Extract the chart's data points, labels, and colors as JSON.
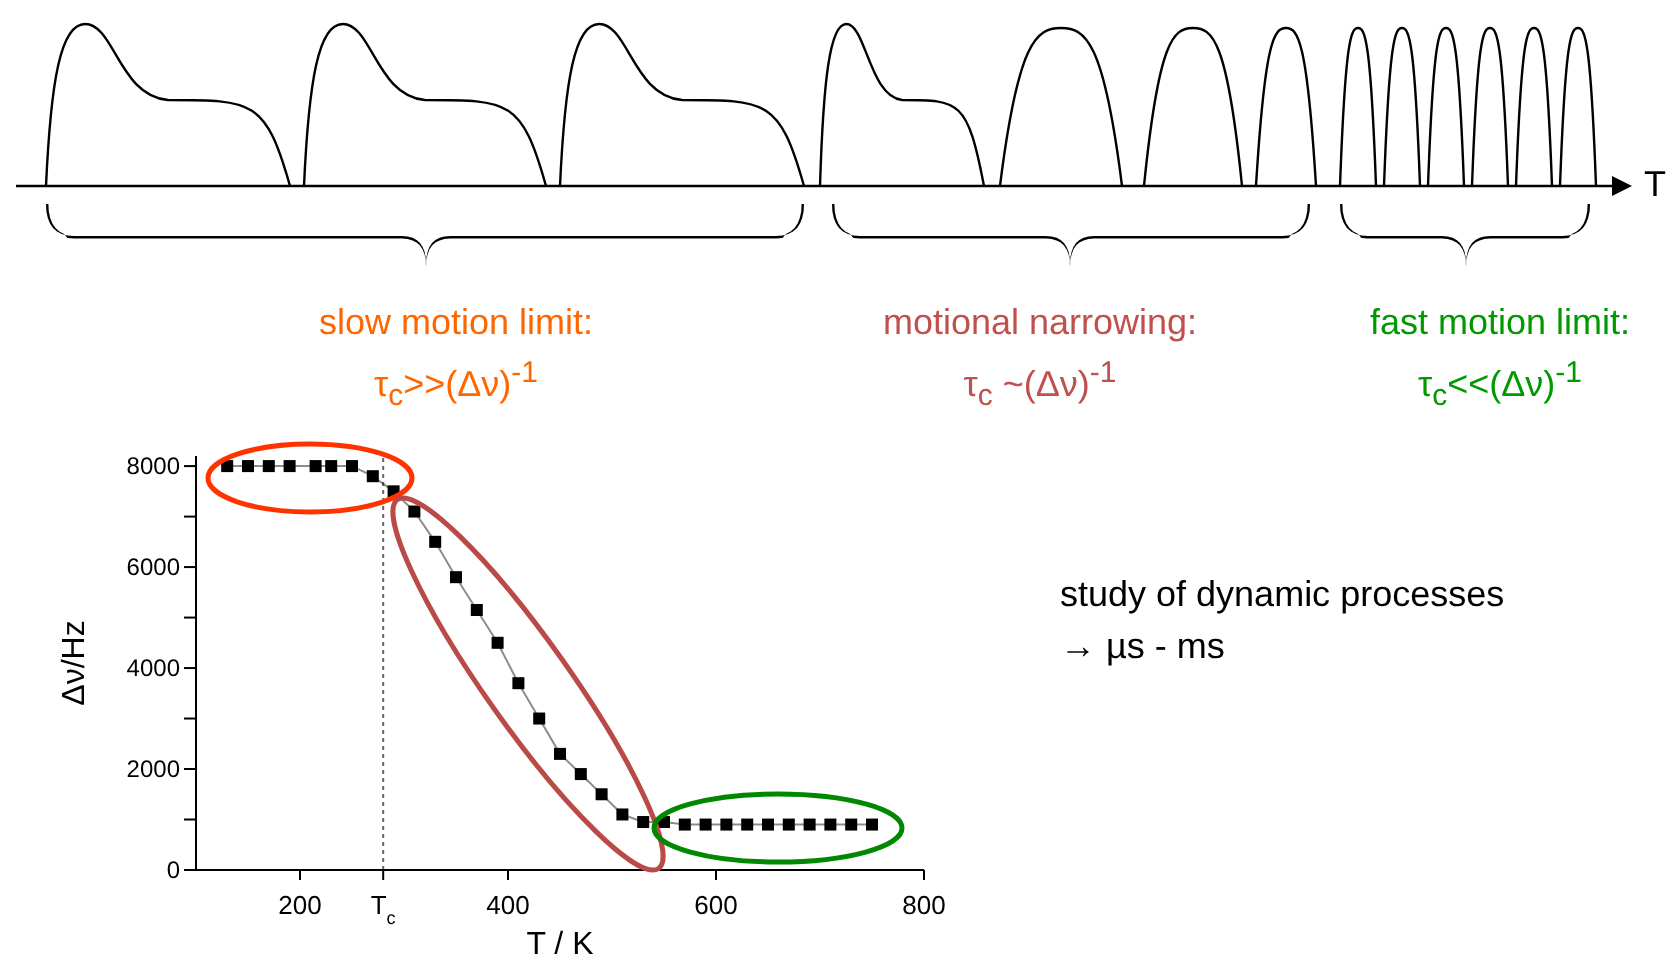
{
  "chart_data": {
    "type": "line",
    "xlabel": "T / K",
    "ylabel": "Δν/Hz",
    "x": [
      130,
      150,
      170,
      190,
      215,
      230,
      250,
      270,
      290,
      310,
      330,
      350,
      370,
      390,
      410,
      430,
      450,
      470,
      490,
      510,
      530,
      550,
      570,
      590,
      610,
      630,
      650,
      670,
      690,
      710,
      730,
      750
    ],
    "series": [
      {
        "color": "#000000",
        "values": [
          8000,
          8000,
          8000,
          8000,
          8000,
          8000,
          8000,
          7800,
          7500,
          7100,
          6500,
          5800,
          5150,
          4500,
          3700,
          3000,
          2300,
          1900,
          1500,
          1100,
          950,
          950,
          900,
          900,
          900,
          900,
          900,
          900,
          900,
          900,
          900,
          900
        ]
      }
    ],
    "xlim": [
      100,
      800
    ],
    "xticks": [
      200,
      {
        "value": 280,
        "label": "T$_{c}$"
      },
      400,
      600,
      800
    ],
    "ylim": [
      0,
      8200
    ],
    "yticks": [
      0,
      {
        "value": 1000,
        "label": null
      },
      2000,
      {
        "value": 3000,
        "label": null
      },
      4000,
      {
        "value": 5000,
        "label": null
      },
      6000,
      {
        "value": 7000,
        "label": null
      },
      8000
    ],
    "ref_lines": [
      {
        "axis": "x",
        "value": 280,
        "line_style": "dotted"
      }
    ],
    "marker": "square",
    "line_style": "solid",
    "grid": false,
    "legend": false,
    "annotations": [
      "T",
      "slow motion limit:",
      "τ$_{c}$>>(Δν)$^{-1}$",
      "motional narrowing:",
      "τ$_{c}$ ~(Δν)$^{-1}$",
      "fast motion limit:",
      "τ$_{c}$<<(Δν)$^{-1}$",
      "study of dynamic processes",
      "→ µs - ms"
    ]
  }
}
